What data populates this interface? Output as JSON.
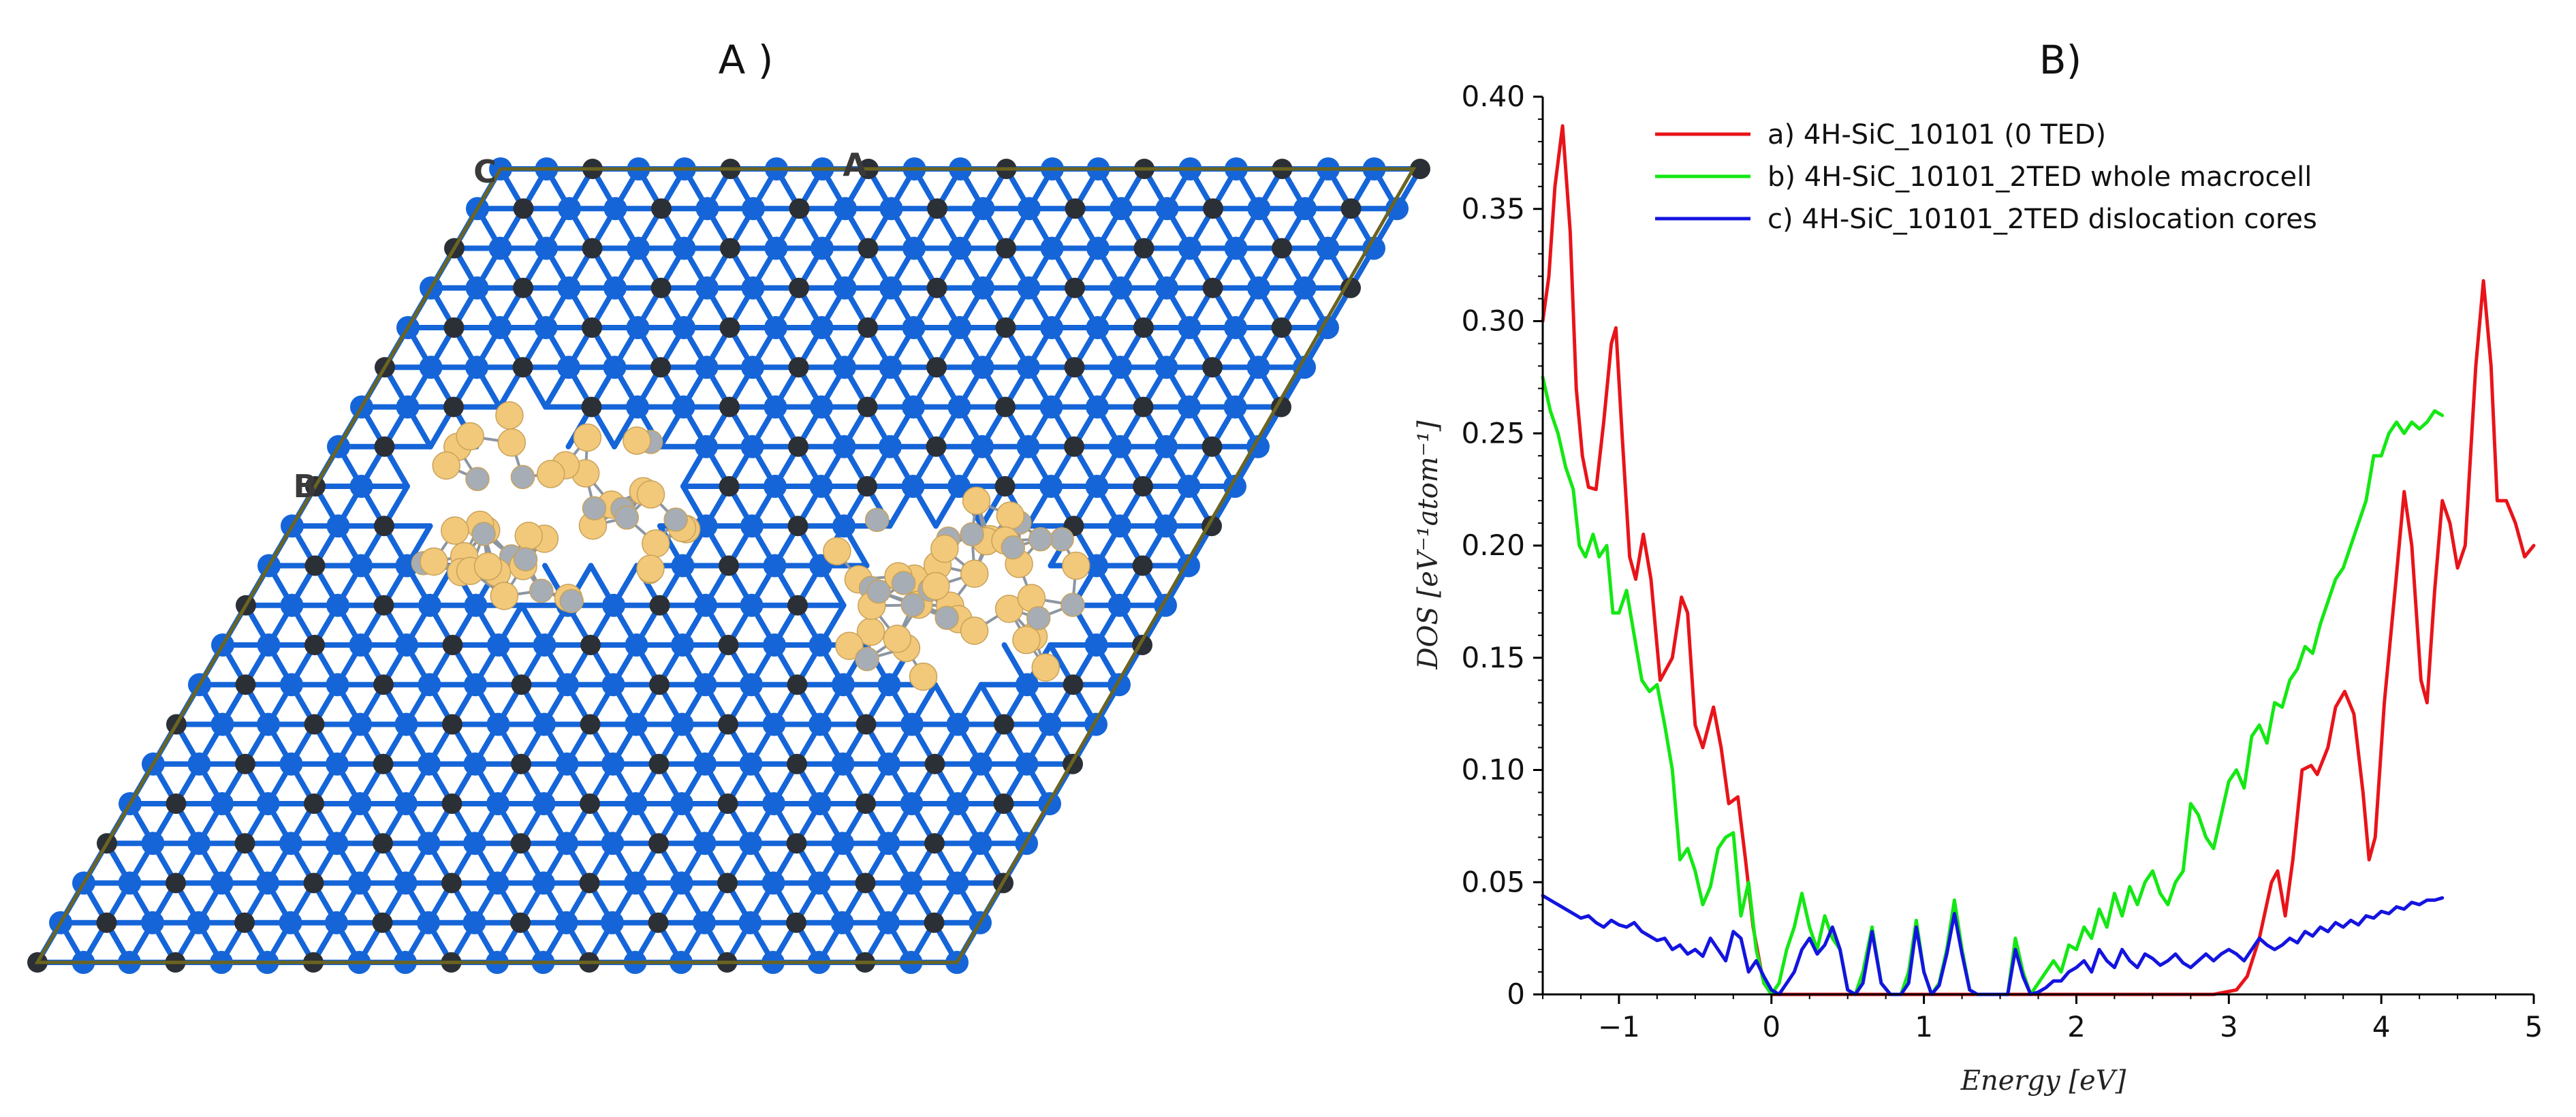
{
  "panel_a": {
    "title": "A )",
    "lattice_labels": [
      "C",
      "A",
      "B"
    ],
    "colors": {
      "si_atom": "#1565d8",
      "c_atom": "#2b2f36",
      "core_gold": "#f2c87a",
      "core_grey": "#a6adb5",
      "cell_border": "#6b6420"
    }
  },
  "chart_data": {
    "type": "line",
    "title": "B)",
    "xlabel": "Energy [eV]",
    "ylabel": "DOS [eV⁻¹atom⁻¹]",
    "xlim": [
      -1.5,
      5.0
    ],
    "ylim": [
      0.0,
      0.4
    ],
    "xticks": [
      -1,
      0,
      1,
      2,
      3,
      4,
      5
    ],
    "xtick_labels": [
      "−1",
      "0",
      "1",
      "2",
      "3",
      "4",
      "5"
    ],
    "yticks": [
      0.0,
      0.05,
      0.1,
      0.15,
      0.2,
      0.25,
      0.3,
      0.35,
      0.4
    ],
    "ytick_labels": [
      "0",
      "0.05",
      "0.10",
      "0.15",
      "0.20",
      "0.25",
      "0.30",
      "0.35",
      "0.40"
    ],
    "legend_position": "top-center",
    "series": [
      {
        "name": "a) 4H-SiC_10101 (0 TED)",
        "color": "#e8141a",
        "points": [
          [
            -1.5,
            0.3
          ],
          [
            -1.46,
            0.32
          ],
          [
            -1.42,
            0.36
          ],
          [
            -1.37,
            0.387
          ],
          [
            -1.32,
            0.34
          ],
          [
            -1.28,
            0.27
          ],
          [
            -1.24,
            0.24
          ],
          [
            -1.2,
            0.226
          ],
          [
            -1.15,
            0.225
          ],
          [
            -1.1,
            0.255
          ],
          [
            -1.05,
            0.29
          ],
          [
            -1.02,
            0.297
          ],
          [
            -0.98,
            0.25
          ],
          [
            -0.93,
            0.195
          ],
          [
            -0.89,
            0.185
          ],
          [
            -0.84,
            0.205
          ],
          [
            -0.79,
            0.185
          ],
          [
            -0.73,
            0.14
          ],
          [
            -0.65,
            0.15
          ],
          [
            -0.59,
            0.177
          ],
          [
            -0.55,
            0.17
          ],
          [
            -0.5,
            0.12
          ],
          [
            -0.45,
            0.11
          ],
          [
            -0.38,
            0.128
          ],
          [
            -0.33,
            0.11
          ],
          [
            -0.28,
            0.085
          ],
          [
            -0.22,
            0.088
          ],
          [
            -0.17,
            0.06
          ],
          [
            -0.12,
            0.03
          ],
          [
            -0.06,
            0.008
          ],
          [
            0.0,
            0.0
          ],
          [
            0.5,
            0.0
          ],
          [
            1.0,
            0.0
          ],
          [
            1.5,
            0.0
          ],
          [
            2.0,
            0.0
          ],
          [
            2.5,
            0.0
          ],
          [
            2.9,
            0.0
          ],
          [
            3.05,
            0.002
          ],
          [
            3.12,
            0.008
          ],
          [
            3.2,
            0.025
          ],
          [
            3.28,
            0.05
          ],
          [
            3.32,
            0.055
          ],
          [
            3.37,
            0.035
          ],
          [
            3.42,
            0.06
          ],
          [
            3.48,
            0.1
          ],
          [
            3.54,
            0.102
          ],
          [
            3.58,
            0.098
          ],
          [
            3.65,
            0.11
          ],
          [
            3.7,
            0.128
          ],
          [
            3.76,
            0.135
          ],
          [
            3.82,
            0.125
          ],
          [
            3.88,
            0.09
          ],
          [
            3.92,
            0.06
          ],
          [
            3.96,
            0.07
          ],
          [
            4.02,
            0.13
          ],
          [
            4.09,
            0.18
          ],
          [
            4.15,
            0.224
          ],
          [
            4.2,
            0.2
          ],
          [
            4.26,
            0.14
          ],
          [
            4.3,
            0.13
          ],
          [
            4.35,
            0.18
          ],
          [
            4.4,
            0.22
          ],
          [
            4.45,
            0.21
          ],
          [
            4.5,
            0.19
          ],
          [
            4.55,
            0.2
          ],
          [
            4.62,
            0.28
          ],
          [
            4.67,
            0.318
          ],
          [
            4.72,
            0.28
          ],
          [
            4.76,
            0.22
          ],
          [
            4.82,
            0.22
          ],
          [
            4.88,
            0.21
          ],
          [
            4.94,
            0.195
          ],
          [
            5.0,
            0.2
          ]
        ]
      },
      {
        "name": "b) 4H-SiC_10101_2TED whole macrocell",
        "color": "#14e814",
        "points": [
          [
            -1.5,
            0.275
          ],
          [
            -1.45,
            0.26
          ],
          [
            -1.4,
            0.25
          ],
          [
            -1.35,
            0.235
          ],
          [
            -1.3,
            0.225
          ],
          [
            -1.26,
            0.2
          ],
          [
            -1.22,
            0.195
          ],
          [
            -1.17,
            0.205
          ],
          [
            -1.13,
            0.195
          ],
          [
            -1.08,
            0.2
          ],
          [
            -1.04,
            0.17
          ],
          [
            -1.0,
            0.17
          ],
          [
            -0.95,
            0.18
          ],
          [
            -0.9,
            0.16
          ],
          [
            -0.85,
            0.14
          ],
          [
            -0.8,
            0.135
          ],
          [
            -0.75,
            0.138
          ],
          [
            -0.7,
            0.12
          ],
          [
            -0.65,
            0.1
          ],
          [
            -0.6,
            0.06
          ],
          [
            -0.55,
            0.065
          ],
          [
            -0.5,
            0.055
          ],
          [
            -0.45,
            0.04
          ],
          [
            -0.4,
            0.048
          ],
          [
            -0.35,
            0.065
          ],
          [
            -0.3,
            0.07
          ],
          [
            -0.25,
            0.072
          ],
          [
            -0.2,
            0.035
          ],
          [
            -0.15,
            0.05
          ],
          [
            -0.1,
            0.02
          ],
          [
            -0.05,
            0.005
          ],
          [
            0.0,
            0.0
          ],
          [
            0.05,
            0.005
          ],
          [
            0.1,
            0.02
          ],
          [
            0.15,
            0.03
          ],
          [
            0.2,
            0.045
          ],
          [
            0.25,
            0.03
          ],
          [
            0.3,
            0.02
          ],
          [
            0.35,
            0.035
          ],
          [
            0.4,
            0.025
          ],
          [
            0.45,
            0.02
          ],
          [
            0.5,
            0.002
          ],
          [
            0.55,
            0.0
          ],
          [
            0.6,
            0.01
          ],
          [
            0.66,
            0.03
          ],
          [
            0.72,
            0.005
          ],
          [
            0.78,
            0.0
          ],
          [
            0.85,
            0.0
          ],
          [
            0.9,
            0.01
          ],
          [
            0.95,
            0.033
          ],
          [
            1.0,
            0.01
          ],
          [
            1.05,
            0.0
          ],
          [
            1.1,
            0.005
          ],
          [
            1.15,
            0.02
          ],
          [
            1.2,
            0.042
          ],
          [
            1.25,
            0.02
          ],
          [
            1.3,
            0.002
          ],
          [
            1.35,
            0.0
          ],
          [
            1.45,
            0.0
          ],
          [
            1.55,
            0.0
          ],
          [
            1.6,
            0.025
          ],
          [
            1.65,
            0.01
          ],
          [
            1.7,
            0.0
          ],
          [
            1.75,
            0.005
          ],
          [
            1.8,
            0.01
          ],
          [
            1.85,
            0.015
          ],
          [
            1.9,
            0.01
          ],
          [
            1.95,
            0.022
          ],
          [
            2.0,
            0.02
          ],
          [
            2.05,
            0.03
          ],
          [
            2.1,
            0.025
          ],
          [
            2.15,
            0.038
          ],
          [
            2.2,
            0.03
          ],
          [
            2.25,
            0.045
          ],
          [
            2.3,
            0.035
          ],
          [
            2.35,
            0.048
          ],
          [
            2.4,
            0.04
          ],
          [
            2.45,
            0.05
          ],
          [
            2.5,
            0.055
          ],
          [
            2.55,
            0.045
          ],
          [
            2.6,
            0.04
          ],
          [
            2.65,
            0.05
          ],
          [
            2.7,
            0.055
          ],
          [
            2.75,
            0.085
          ],
          [
            2.8,
            0.08
          ],
          [
            2.85,
            0.07
          ],
          [
            2.9,
            0.065
          ],
          [
            2.95,
            0.08
          ],
          [
            3.0,
            0.095
          ],
          [
            3.05,
            0.1
          ],
          [
            3.1,
            0.092
          ],
          [
            3.15,
            0.115
          ],
          [
            3.2,
            0.12
          ],
          [
            3.25,
            0.112
          ],
          [
            3.3,
            0.13
          ],
          [
            3.35,
            0.128
          ],
          [
            3.4,
            0.14
          ],
          [
            3.45,
            0.145
          ],
          [
            3.5,
            0.155
          ],
          [
            3.55,
            0.152
          ],
          [
            3.6,
            0.165
          ],
          [
            3.65,
            0.175
          ],
          [
            3.7,
            0.185
          ],
          [
            3.75,
            0.19
          ],
          [
            3.8,
            0.2
          ],
          [
            3.85,
            0.21
          ],
          [
            3.9,
            0.22
          ],
          [
            3.95,
            0.24
          ],
          [
            4.0,
            0.24
          ],
          [
            4.05,
            0.25
          ],
          [
            4.1,
            0.255
          ],
          [
            4.15,
            0.25
          ],
          [
            4.2,
            0.255
          ],
          [
            4.25,
            0.252
          ],
          [
            4.3,
            0.255
          ],
          [
            4.35,
            0.26
          ],
          [
            4.4,
            0.258
          ]
        ]
      },
      {
        "name": "c) 4H-SiC_10101_2TED dislocation cores",
        "color": "#1414e0",
        "points": [
          [
            -1.5,
            0.044
          ],
          [
            -1.45,
            0.042
          ],
          [
            -1.4,
            0.04
          ],
          [
            -1.35,
            0.038
          ],
          [
            -1.3,
            0.036
          ],
          [
            -1.25,
            0.034
          ],
          [
            -1.2,
            0.035
          ],
          [
            -1.15,
            0.032
          ],
          [
            -1.1,
            0.03
          ],
          [
            -1.05,
            0.033
          ],
          [
            -1.0,
            0.031
          ],
          [
            -0.95,
            0.03
          ],
          [
            -0.9,
            0.032
          ],
          [
            -0.85,
            0.028
          ],
          [
            -0.8,
            0.026
          ],
          [
            -0.75,
            0.024
          ],
          [
            -0.7,
            0.025
          ],
          [
            -0.65,
            0.02
          ],
          [
            -0.6,
            0.022
          ],
          [
            -0.55,
            0.018
          ],
          [
            -0.5,
            0.02
          ],
          [
            -0.45,
            0.017
          ],
          [
            -0.4,
            0.025
          ],
          [
            -0.35,
            0.02
          ],
          [
            -0.3,
            0.015
          ],
          [
            -0.25,
            0.028
          ],
          [
            -0.2,
            0.025
          ],
          [
            -0.15,
            0.01
          ],
          [
            -0.1,
            0.015
          ],
          [
            -0.05,
            0.008
          ],
          [
            0.0,
            0.002
          ],
          [
            0.05,
            0.0
          ],
          [
            0.1,
            0.005
          ],
          [
            0.15,
            0.01
          ],
          [
            0.2,
            0.02
          ],
          [
            0.25,
            0.025
          ],
          [
            0.3,
            0.018
          ],
          [
            0.35,
            0.022
          ],
          [
            0.4,
            0.03
          ],
          [
            0.45,
            0.02
          ],
          [
            0.5,
            0.002
          ],
          [
            0.55,
            0.0
          ],
          [
            0.6,
            0.005
          ],
          [
            0.66,
            0.028
          ],
          [
            0.72,
            0.005
          ],
          [
            0.78,
            0.0
          ],
          [
            0.85,
            0.0
          ],
          [
            0.9,
            0.005
          ],
          [
            0.95,
            0.03
          ],
          [
            1.0,
            0.01
          ],
          [
            1.05,
            0.0
          ],
          [
            1.1,
            0.004
          ],
          [
            1.15,
            0.018
          ],
          [
            1.2,
            0.036
          ],
          [
            1.25,
            0.018
          ],
          [
            1.3,
            0.002
          ],
          [
            1.35,
            0.0
          ],
          [
            1.45,
            0.0
          ],
          [
            1.55,
            0.0
          ],
          [
            1.6,
            0.02
          ],
          [
            1.65,
            0.008
          ],
          [
            1.7,
            0.0
          ],
          [
            1.75,
            0.001
          ],
          [
            1.8,
            0.003
          ],
          [
            1.85,
            0.006
          ],
          [
            1.9,
            0.006
          ],
          [
            1.95,
            0.01
          ],
          [
            2.0,
            0.012
          ],
          [
            2.05,
            0.015
          ],
          [
            2.1,
            0.01
          ],
          [
            2.15,
            0.02
          ],
          [
            2.2,
            0.015
          ],
          [
            2.25,
            0.012
          ],
          [
            2.3,
            0.02
          ],
          [
            2.35,
            0.015
          ],
          [
            2.4,
            0.012
          ],
          [
            2.45,
            0.018
          ],
          [
            2.5,
            0.016
          ],
          [
            2.55,
            0.013
          ],
          [
            2.6,
            0.015
          ],
          [
            2.65,
            0.018
          ],
          [
            2.7,
            0.014
          ],
          [
            2.75,
            0.012
          ],
          [
            2.8,
            0.015
          ],
          [
            2.85,
            0.018
          ],
          [
            2.9,
            0.015
          ],
          [
            2.95,
            0.018
          ],
          [
            3.0,
            0.02
          ],
          [
            3.05,
            0.018
          ],
          [
            3.1,
            0.015
          ],
          [
            3.15,
            0.02
          ],
          [
            3.2,
            0.025
          ],
          [
            3.25,
            0.022
          ],
          [
            3.3,
            0.02
          ],
          [
            3.35,
            0.022
          ],
          [
            3.4,
            0.025
          ],
          [
            3.45,
            0.023
          ],
          [
            3.5,
            0.028
          ],
          [
            3.55,
            0.026
          ],
          [
            3.6,
            0.03
          ],
          [
            3.65,
            0.028
          ],
          [
            3.7,
            0.032
          ],
          [
            3.75,
            0.03
          ],
          [
            3.8,
            0.033
          ],
          [
            3.85,
            0.031
          ],
          [
            3.9,
            0.035
          ],
          [
            3.95,
            0.034
          ],
          [
            4.0,
            0.037
          ],
          [
            4.05,
            0.036
          ],
          [
            4.1,
            0.039
          ],
          [
            4.15,
            0.038
          ],
          [
            4.2,
            0.041
          ],
          [
            4.25,
            0.04
          ],
          [
            4.3,
            0.042
          ],
          [
            4.35,
            0.042
          ],
          [
            4.4,
            0.043
          ]
        ]
      }
    ]
  }
}
